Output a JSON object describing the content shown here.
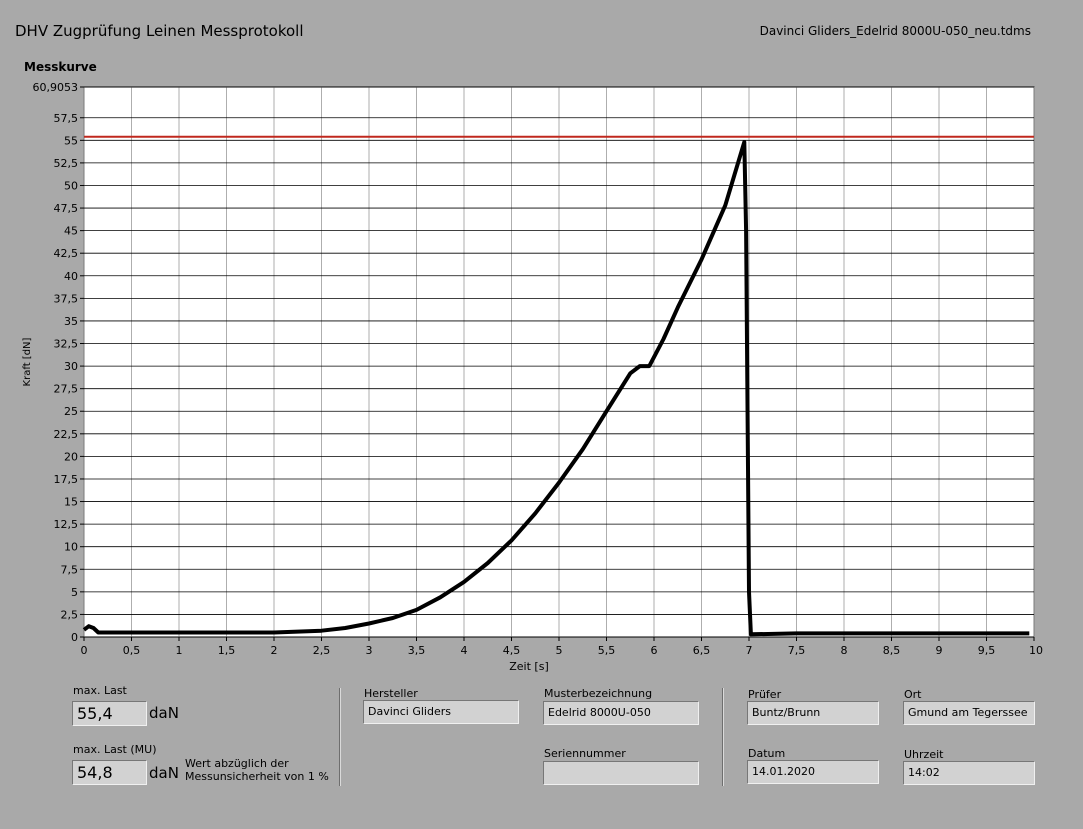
{
  "header": {
    "title": "DHV Zugprüfung Leinen Messprotokoll",
    "file": "Davinci Gliders_Edelrid 8000U-050_neu.tdms"
  },
  "graph": {
    "title": "Messkurve"
  },
  "colors": {
    "background": "#a9a9a9",
    "plot_bg": "#ffffff",
    "curve": "#000000",
    "limit_line": "#c0281e"
  },
  "chart_data": {
    "type": "line",
    "title": "Messkurve",
    "xlabel": "Zeit [s]",
    "ylabel": "Kraft [dN]",
    "xlim": [
      0,
      10
    ],
    "ylim": [
      0,
      60.9053
    ],
    "grid": true,
    "x_ticks": [
      "0",
      "0,5",
      "1",
      "1,5",
      "2",
      "2,5",
      "3",
      "3,5",
      "4",
      "4,5",
      "5",
      "5,5",
      "6",
      "6,5",
      "7",
      "7,5",
      "8",
      "8,5",
      "9",
      "9,5",
      "10"
    ],
    "y_ticks": [
      "0",
      "2,5",
      "5",
      "7,5",
      "10",
      "12,5",
      "15",
      "17,5",
      "20",
      "22,5",
      "25",
      "27,5",
      "30",
      "32,5",
      "35",
      "37,5",
      "40",
      "42,5",
      "45",
      "47,5",
      "50",
      "52,5",
      "55",
      "57,5",
      "60,9053"
    ],
    "limit_line": 55.4,
    "series": [
      {
        "x": [
          0,
          0.05,
          0.1,
          0.15,
          0.5,
          1.0,
          1.5,
          2.0,
          2.5,
          2.75,
          3.0,
          3.25,
          3.5,
          3.75,
          4.0,
          4.25,
          4.5,
          4.75,
          5.0,
          5.25,
          5.5,
          5.75,
          5.85,
          5.95,
          6.1,
          6.25,
          6.5,
          6.75,
          6.95,
          6.97,
          7.0,
          7.02,
          7.5,
          8.0,
          8.5,
          9.0,
          9.5,
          9.95
        ],
        "y": [
          0.8,
          1.2,
          1.0,
          0.5,
          0.5,
          0.5,
          0.5,
          0.5,
          0.7,
          1.0,
          1.5,
          2.1,
          3.0,
          4.4,
          6.1,
          8.2,
          10.7,
          13.7,
          17.1,
          20.8,
          25.0,
          29.2,
          30.0,
          30.0,
          33.0,
          36.5,
          41.8,
          47.8,
          54.8,
          45.0,
          5.0,
          0.3,
          0.4,
          0.4,
          0.4,
          0.4,
          0.4,
          0.4
        ]
      }
    ]
  },
  "results": {
    "max_last_label": "max. Last",
    "max_last_value": "55,4",
    "max_last_mu_label": "max. Last (MU)",
    "max_last_mu_value": "54,8",
    "unit": "daN",
    "note": "Wert abzüglich der Messunsicherheit von 1 %"
  },
  "info": {
    "hersteller_label": "Hersteller",
    "hersteller": "Davinci Gliders",
    "muster_label": "Musterbezeichnung",
    "muster": "Edelrid 8000U-050",
    "serien_label": "Seriennummer",
    "serien": "",
    "pruefer_label": "Prüfer",
    "pruefer": "Buntz/Brunn",
    "ort_label": "Ort",
    "ort": "Gmund am Tegerssee",
    "datum_label": "Datum",
    "datum": "14.01.2020",
    "uhrzeit_label": "Uhrzeit",
    "uhrzeit": "14:02"
  }
}
